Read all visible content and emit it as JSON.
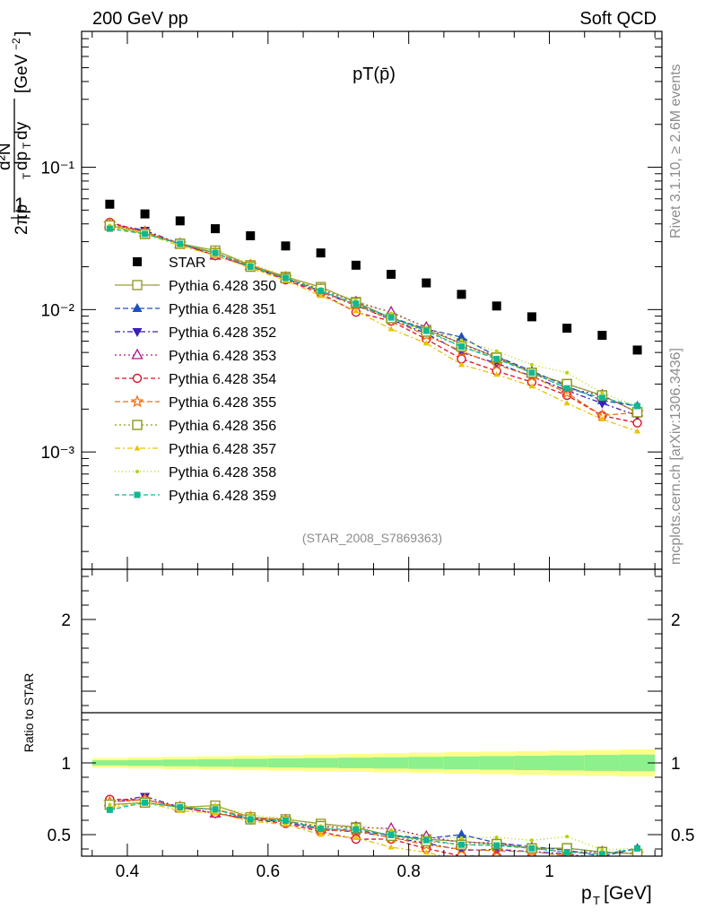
{
  "header": {
    "left": "200 GeV pp",
    "right": "Soft QCD"
  },
  "side_labels": {
    "rivet": "Rivet 3.1.10, ≥ 2.6M events",
    "mcplots": "mcplots.cern.ch [arXiv:1306.3436]"
  },
  "chart_data": {
    "type": "scatter",
    "title": "pT(p̄)",
    "analysis": "(STAR_2008_S7869363)",
    "xlabel": "p_T [GeV]",
    "ylabel": "1/(2π p_T) d²N/(dp_T dy) [GeV⁻²]",
    "ratio_ylabel": "Ratio to STAR",
    "xlim": [
      0.335,
      1.16
    ],
    "ylim": [
      0.00015,
      0.9
    ],
    "yscale": "log",
    "ratio_ylim": [
      0.35,
      2.35
    ],
    "x_ticks": [
      "0.4",
      "0.6",
      "0.8",
      "1"
    ],
    "y_ticks": [
      "10⁻³",
      "10⁻²",
      "10⁻¹"
    ],
    "ratio_ticks": [
      "0.5",
      "1",
      "2"
    ],
    "legend_position": "middle-left",
    "x": [
      0.375,
      0.425,
      0.475,
      0.525,
      0.575,
      0.625,
      0.675,
      0.725,
      0.775,
      0.825,
      0.875,
      0.925,
      0.975,
      1.025,
      1.075,
      1.125
    ],
    "reference": {
      "name": "STAR",
      "values": [
        0.055,
        0.047,
        0.042,
        0.037,
        0.033,
        0.028,
        0.025,
        0.0205,
        0.0177,
        0.0154,
        0.0128,
        0.0106,
        0.0089,
        0.0074,
        0.0066,
        0.0052
      ],
      "color": "#000000"
    },
    "series": [
      {
        "name": "Pythia 6.428 350",
        "color": "#9a9a3a",
        "dash": "",
        "marker": "square-open",
        "values": [
          0.039,
          0.034,
          0.029,
          0.026,
          0.0205,
          0.017,
          0.0144,
          0.0113,
          0.0087,
          0.0072,
          0.0058,
          0.0046,
          0.0036,
          0.003,
          0.0025,
          0.0019
        ]
      },
      {
        "name": "Pythia 6.428 351",
        "color": "#1f4fbf",
        "dash": "6,3",
        "marker": "triangle-up",
        "values": [
          0.04,
          0.035,
          0.029,
          0.025,
          0.0202,
          0.0168,
          0.0135,
          0.0108,
          0.0088,
          0.0073,
          0.0064,
          0.0047,
          0.0037,
          0.0029,
          0.0023,
          0.0021
        ]
      },
      {
        "name": "Pythia 6.428 352",
        "color": "#3b1fb5",
        "dash": "6,3,2,3",
        "marker": "triangle-down",
        "values": [
          0.04,
          0.036,
          0.029,
          0.024,
          0.02,
          0.0165,
          0.0133,
          0.0107,
          0.0085,
          0.0068,
          0.005,
          0.0042,
          0.0034,
          0.0027,
          0.0022,
          0.0018
        ]
      },
      {
        "name": "Pythia 6.428 353",
        "color": "#b0178a",
        "dash": "2,3",
        "marker": "triangle-open",
        "values": [
          0.04,
          0.035,
          0.029,
          0.024,
          0.0203,
          0.0167,
          0.0138,
          0.0113,
          0.0096,
          0.0075,
          0.0057,
          0.0047,
          0.0036,
          0.0028,
          0.0025,
          0.0019
        ]
      },
      {
        "name": "Pythia 6.428 354",
        "color": "#e0102a",
        "dash": "5,3",
        "marker": "circle-open",
        "values": [
          0.041,
          0.035,
          0.029,
          0.024,
          0.02,
          0.0162,
          0.013,
          0.0096,
          0.0083,
          0.0062,
          0.0045,
          0.0037,
          0.0031,
          0.0025,
          0.0018,
          0.0016
        ]
      },
      {
        "name": "Pythia 6.428 355",
        "color": "#f07010",
        "dash": "6,3",
        "marker": "star",
        "values": [
          0.04,
          0.035,
          0.029,
          0.025,
          0.0205,
          0.0168,
          0.0133,
          0.0108,
          0.0085,
          0.0066,
          0.0051,
          0.0041,
          0.0034,
          0.0026,
          0.0018,
          0.0019
        ]
      },
      {
        "name": "Pythia 6.428 356",
        "color": "#8a9a1a",
        "dash": "2,3",
        "marker": "square-open",
        "values": [
          0.039,
          0.034,
          0.029,
          0.025,
          0.02,
          0.0166,
          0.014,
          0.0112,
          0.0087,
          0.007,
          0.0055,
          0.0046,
          0.0036,
          0.003,
          0.0025,
          0.0019
        ]
      },
      {
        "name": "Pythia 6.428 357",
        "color": "#e8c400",
        "dash": "6,3,2,3",
        "marker": "tri-small",
        "values": [
          0.038,
          0.034,
          0.028,
          0.024,
          0.0196,
          0.016,
          0.0125,
          0.0098,
          0.0073,
          0.0058,
          0.0041,
          0.0035,
          0.0029,
          0.0022,
          0.0017,
          0.0014
        ]
      },
      {
        "name": "Pythia 6.428 358",
        "color": "#b8d400",
        "dash": "1,3",
        "marker": "dot",
        "values": [
          0.039,
          0.034,
          0.029,
          0.026,
          0.021,
          0.0172,
          0.014,
          0.0116,
          0.0094,
          0.0074,
          0.0061,
          0.0051,
          0.0041,
          0.0036,
          0.0026,
          0.0021
        ]
      },
      {
        "name": "Pythia 6.428 359",
        "color": "#10b890",
        "dash": "5,3",
        "marker": "square-filled",
        "values": [
          0.037,
          0.034,
          0.029,
          0.025,
          0.02,
          0.0167,
          0.0135,
          0.011,
          0.0088,
          0.0071,
          0.0055,
          0.0045,
          0.0036,
          0.0028,
          0.0024,
          0.0021
        ]
      }
    ]
  }
}
